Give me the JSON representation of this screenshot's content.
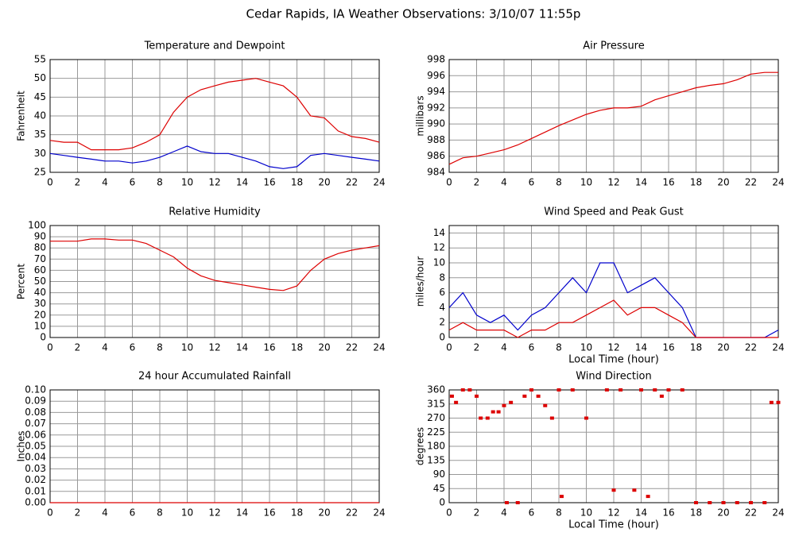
{
  "title": "Cedar Rapids, IA Weather Observations: 3/10/07 11:55p",
  "chart_data": [
    {
      "type": "line",
      "title": "Temperature and Dewpoint",
      "ylabel": "Fahrenheit",
      "x": [
        0,
        1,
        2,
        3,
        4,
        5,
        6,
        7,
        8,
        9,
        10,
        11,
        12,
        13,
        14,
        15,
        16,
        17,
        18,
        19,
        20,
        21,
        22,
        23,
        24
      ],
      "series": [
        {
          "color": "#dd0000",
          "values": [
            33.5,
            33,
            33,
            31,
            31,
            31,
            31.5,
            33,
            35,
            41,
            45,
            47,
            48,
            49,
            49.5,
            50,
            49,
            48,
            45,
            40,
            39.5,
            36,
            34.5,
            34,
            33
          ]
        },
        {
          "color": "#0000cc",
          "values": [
            30,
            29.5,
            29,
            28.5,
            28,
            28,
            27.5,
            28,
            29,
            30.5,
            32,
            30.5,
            30,
            30,
            29,
            28,
            26.5,
            26,
            26.5,
            29.5,
            30,
            29.5,
            29,
            28.5,
            28
          ]
        }
      ],
      "xlim": [
        0,
        24
      ],
      "xticks": [
        0,
        2,
        4,
        6,
        8,
        10,
        12,
        14,
        16,
        18,
        20,
        22,
        24
      ],
      "ylim": [
        25,
        55
      ],
      "yticks": [
        25,
        30,
        35,
        40,
        45,
        50,
        55
      ],
      "grid": true
    },
    {
      "type": "line",
      "title": "Air Pressure",
      "ylabel": "millibars",
      "x": [
        0,
        1,
        2,
        3,
        4,
        5,
        6,
        7,
        8,
        9,
        10,
        11,
        12,
        13,
        14,
        15,
        16,
        17,
        18,
        19,
        20,
        21,
        22,
        23,
        24
      ],
      "series": [
        {
          "color": "#dd0000",
          "values": [
            985,
            985.8,
            986,
            986.4,
            986.8,
            987.4,
            988.2,
            989,
            989.8,
            990.5,
            991.2,
            991.7,
            992,
            992,
            992.2,
            993,
            993.5,
            994,
            994.5,
            994.8,
            995,
            995.5,
            996.2,
            996.4,
            996.4
          ]
        }
      ],
      "xlim": [
        0,
        24
      ],
      "xticks": [
        0,
        2,
        4,
        6,
        8,
        10,
        12,
        14,
        16,
        18,
        20,
        22,
        24
      ],
      "ylim": [
        984,
        998
      ],
      "yticks": [
        984,
        986,
        988,
        990,
        992,
        994,
        996,
        998
      ],
      "grid": true
    },
    {
      "type": "line",
      "title": "Relative Humidity",
      "ylabel": "Percent",
      "x": [
        0,
        1,
        2,
        3,
        4,
        5,
        6,
        7,
        8,
        9,
        10,
        11,
        12,
        13,
        14,
        15,
        16,
        17,
        18,
        19,
        20,
        21,
        22,
        23,
        24
      ],
      "series": [
        {
          "color": "#dd0000",
          "values": [
            86,
            86,
            86,
            88,
            88,
            87,
            87,
            84,
            78,
            72,
            62,
            55,
            51,
            49,
            47,
            45,
            43,
            42,
            46,
            60,
            70,
            75,
            78,
            80,
            82
          ]
        }
      ],
      "xlim": [
        0,
        24
      ],
      "xticks": [
        0,
        2,
        4,
        6,
        8,
        10,
        12,
        14,
        16,
        18,
        20,
        22,
        24
      ],
      "ylim": [
        0,
        100
      ],
      "yticks": [
        0,
        10,
        20,
        30,
        40,
        50,
        60,
        70,
        80,
        90,
        100
      ],
      "grid": true
    },
    {
      "type": "line",
      "title": "Wind Speed and Peak Gust",
      "ylabel": "miles/hour",
      "xlabel": "Local Time (hour)",
      "x": [
        0,
        1,
        2,
        3,
        4,
        5,
        6,
        7,
        8,
        9,
        10,
        11,
        12,
        13,
        14,
        15,
        16,
        17,
        18,
        19,
        20,
        21,
        22,
        23,
        24
      ],
      "series": [
        {
          "color": "#0000cc",
          "values": [
            4,
            6,
            3,
            2,
            3,
            1,
            3,
            4,
            6,
            8,
            6,
            10,
            10,
            6,
            7,
            8,
            6,
            4,
            0,
            0,
            0,
            0,
            0,
            0,
            1
          ]
        },
        {
          "color": "#dd0000",
          "values": [
            1,
            2,
            1,
            1,
            1,
            0,
            1,
            1,
            2,
            2,
            3,
            4,
            5,
            3,
            4,
            4,
            3,
            2,
            0,
            0,
            0,
            0,
            0,
            0,
            0
          ]
        }
      ],
      "xlim": [
        0,
        24
      ],
      "xticks": [
        0,
        2,
        4,
        6,
        8,
        10,
        12,
        14,
        16,
        18,
        20,
        22,
        24
      ],
      "ylim": [
        0,
        15
      ],
      "yticks": [
        0,
        2,
        4,
        6,
        8,
        10,
        12,
        14
      ],
      "grid": true
    },
    {
      "type": "line",
      "title": "24 hour Accumulated Rainfall",
      "ylabel": "Inches",
      "x": [
        0,
        1,
        2,
        3,
        4,
        5,
        6,
        7,
        8,
        9,
        10,
        11,
        12,
        13,
        14,
        15,
        16,
        17,
        18,
        19,
        20,
        21,
        22,
        23,
        24
      ],
      "series": [
        {
          "color": "#dd0000",
          "values": [
            0,
            0,
            0,
            0,
            0,
            0,
            0,
            0,
            0,
            0,
            0,
            0,
            0,
            0,
            0,
            0,
            0,
            0,
            0,
            0,
            0,
            0,
            0,
            0,
            0
          ]
        }
      ],
      "xlim": [
        0,
        24
      ],
      "xticks": [
        0,
        2,
        4,
        6,
        8,
        10,
        12,
        14,
        16,
        18,
        20,
        22,
        24
      ],
      "ylim": [
        0,
        0.1
      ],
      "yticks": [
        {
          "value": 0,
          "label": "0.00"
        },
        {
          "value": 0.01,
          "label": "0.01"
        },
        {
          "value": 0.02,
          "label": "0.02"
        },
        {
          "value": 0.03,
          "label": "0.03"
        },
        {
          "value": 0.04,
          "label": "0.04"
        },
        {
          "value": 0.05,
          "label": "0.05"
        },
        {
          "value": 0.06,
          "label": "0.06"
        },
        {
          "value": 0.07,
          "label": "0.07"
        },
        {
          "value": 0.08,
          "label": "0.08"
        },
        {
          "value": 0.09,
          "label": "0.09"
        },
        {
          "value": 0.1,
          "label": "0.10"
        }
      ],
      "grid": true
    },
    {
      "type": "scatter",
      "title": "Wind Direction",
      "ylabel": "degrees",
      "xlabel": "Local Time (hour)",
      "x": [
        0.2,
        0.5,
        1,
        1.5,
        2,
        2.3,
        2.8,
        3.2,
        3.6,
        4,
        4.2,
        4.5,
        5,
        5.5,
        6,
        6.5,
        7,
        7.5,
        8,
        8.2,
        9,
        10,
        11.5,
        12,
        12.5,
        13.5,
        14,
        14.5,
        15,
        15.5,
        16,
        17,
        18,
        19,
        20,
        21,
        22,
        23,
        23.5,
        24
      ],
      "series": [
        {
          "color": "#dd0000",
          "values": [
            340,
            320,
            360,
            360,
            340,
            270,
            270,
            290,
            290,
            310,
            0,
            320,
            0,
            340,
            360,
            340,
            310,
            270,
            360,
            20,
            360,
            270,
            360,
            40,
            360,
            40,
            360,
            20,
            360,
            340,
            360,
            360,
            0,
            0,
            0,
            0,
            0,
            0,
            320,
            320
          ]
        }
      ],
      "xlim": [
        0,
        24
      ],
      "xticks": [
        0,
        2,
        4,
        6,
        8,
        10,
        12,
        14,
        16,
        18,
        20,
        22,
        24
      ],
      "ylim": [
        0,
        360
      ],
      "yticks": [
        0,
        45,
        90,
        135,
        180,
        225,
        270,
        315,
        360
      ],
      "grid": true
    }
  ]
}
